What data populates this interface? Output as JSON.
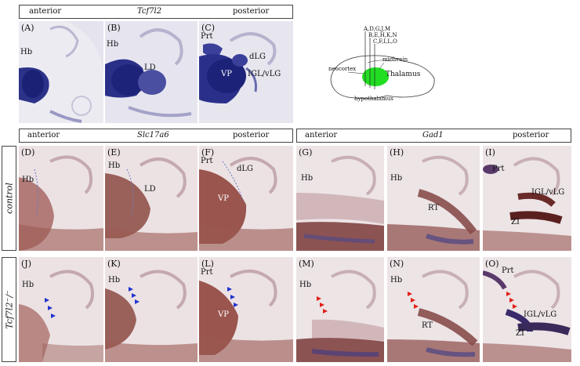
{
  "top": {
    "anterior": "anterior",
    "gene": "Tcf7l2",
    "posterior": "posterior",
    "panels": [
      {
        "id": "(A)",
        "labels": [
          "Hb"
        ]
      },
      {
        "id": "(B)",
        "labels": [
          "Hb",
          "LD"
        ]
      },
      {
        "id": "(C)",
        "labels": [
          "Prt",
          "dLG",
          "VP",
          "IGL/vLG"
        ]
      }
    ]
  },
  "schematic": {
    "sections": [
      "A,D,G,J,M",
      "B,E,H,K,N",
      "C,F,I,L,O"
    ],
    "midbrain": "midbrain",
    "neocortex": "neocortex",
    "thalamus": "Thalamus",
    "hypothalamus": "hypothalamus"
  },
  "slc": {
    "anterior": "anterior",
    "gene": "Slc17a6",
    "posterior": "posterior"
  },
  "gad": {
    "anterior": "anterior",
    "gene": "Gad1",
    "posterior": "posterior"
  },
  "rows": {
    "control": "control",
    "mutant": "Tcf7l2⁻/⁻"
  },
  "control_panels": [
    {
      "id": "(D)",
      "labels": [
        "Hb"
      ]
    },
    {
      "id": "(E)",
      "labels": [
        "Hb",
        "LD"
      ]
    },
    {
      "id": "(F)",
      "labels": [
        "Prt",
        "dLG",
        "VP"
      ]
    },
    {
      "id": "(G)",
      "labels": [
        "Hb"
      ]
    },
    {
      "id": "(H)",
      "labels": [
        "Hb",
        "RT"
      ]
    },
    {
      "id": "(I)",
      "labels": [
        "Prt",
        "IGL/vLG",
        "ZI"
      ]
    }
  ],
  "mutant_panels": [
    {
      "id": "(J)",
      "labels": [
        "Hb"
      ]
    },
    {
      "id": "(K)",
      "labels": [
        "Hb"
      ]
    },
    {
      "id": "(L)",
      "labels": [
        "Prt",
        "VP"
      ]
    },
    {
      "id": "(M)",
      "labels": [
        "Hb"
      ]
    },
    {
      "id": "(N)",
      "labels": [
        "Hb",
        "RT"
      ]
    },
    {
      "id": "(O)",
      "labels": [
        "Prt",
        "IGL/vLG",
        "ZI"
      ]
    }
  ],
  "colors": {
    "tcf_stain": "#3a3f9a",
    "slc_stain": "#8a3a30",
    "gad_stain": "#7a3a38",
    "background_tissue": "#e8dde0",
    "blue_arrow": "#2233cc",
    "red_arrow": "#e0201a",
    "thalamus_green": "#22dd22"
  }
}
